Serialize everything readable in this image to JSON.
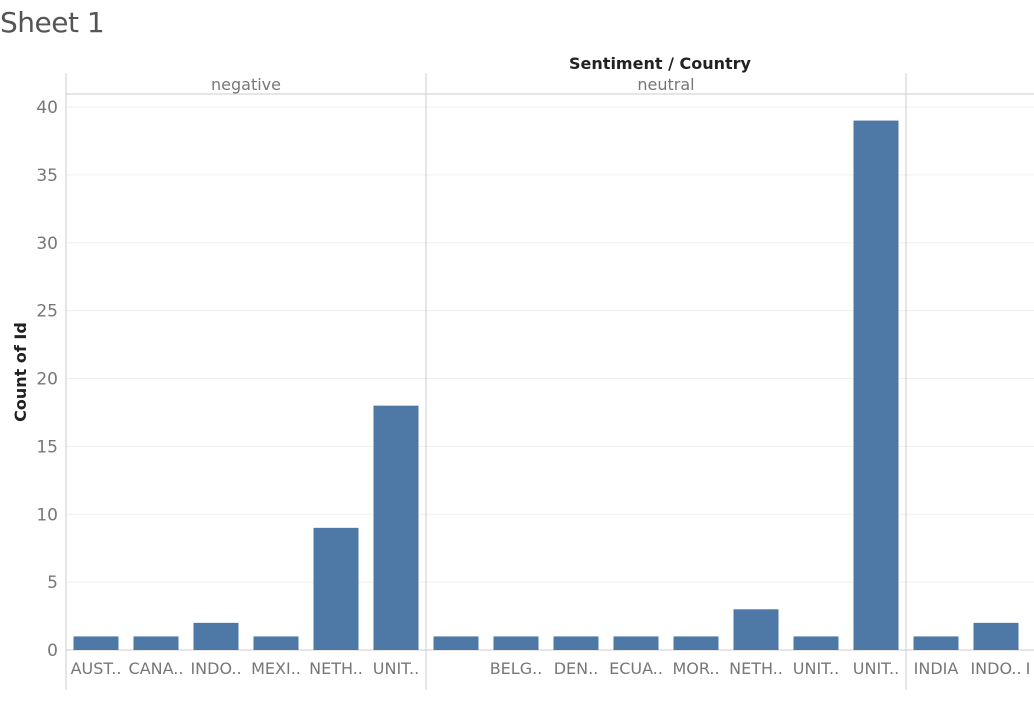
{
  "sheet": {
    "title": "Sheet 1"
  },
  "chart_data": {
    "type": "bar",
    "title": "",
    "column_header": "Sentiment / Country",
    "ylabel": "Count of Id",
    "ylim": [
      0,
      41
    ],
    "yticks": [
      0,
      5,
      10,
      15,
      20,
      25,
      30,
      35,
      40
    ],
    "grid": true,
    "bar_color": "#4e79a7",
    "panels": [
      {
        "name": "negative",
        "categories": [
          "AUST..",
          "CANA..",
          "INDO..",
          "MEXI..",
          "NETH..",
          "UNIT.."
        ],
        "values": [
          1,
          1,
          2,
          1,
          9,
          18
        ]
      },
      {
        "name": "neutral",
        "categories": [
          "",
          "BELG..",
          "DEN..",
          "ECUA..",
          "MOR..",
          "NETH..",
          "UNIT..",
          "UNIT.."
        ],
        "values": [
          1,
          1,
          1,
          1,
          1,
          3,
          1,
          39
        ]
      },
      {
        "name": "",
        "categories": [
          "INDIA",
          "INDO..",
          "I"
        ],
        "values": [
          1,
          2,
          0
        ]
      }
    ]
  }
}
